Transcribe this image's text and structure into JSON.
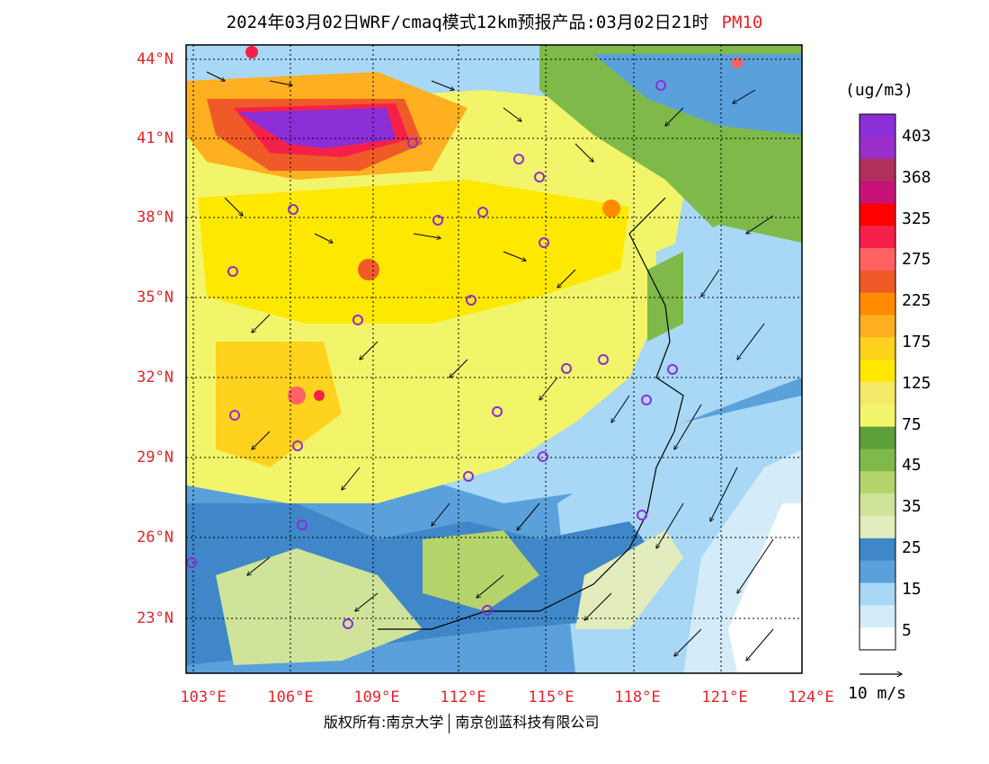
{
  "title": {
    "main": "2024年03月02日WRF/cmaq模式12km预报产品:03月02日21时",
    "species": "PM10"
  },
  "map": {
    "lat_labels": [
      "44°N",
      "41°N",
      "38°N",
      "35°N",
      "32°N",
      "29°N",
      "26°N",
      "23°N"
    ],
    "lon_labels": [
      "103°E",
      "106°E",
      "109°E",
      "112°E",
      "115°E",
      "118°E",
      "121°E",
      "124°E"
    ]
  },
  "colorbar": {
    "unit": "(ug/m3)",
    "labels": [
      "403",
      "368",
      "325",
      "275",
      "225",
      "175",
      "125",
      "75",
      "45",
      "35",
      "25",
      "15",
      "5"
    ],
    "colors": [
      "#8b2fd6",
      "#9b2fc9",
      "#b0305c",
      "#c8127a",
      "#ff0000",
      "#f5204a",
      "#ff6262",
      "#f05a28",
      "#ff8c00",
      "#ffb020",
      "#ffd21e",
      "#ffe800",
      "#f5e96a",
      "#f2f56a",
      "#5fa03a",
      "#7fb94a",
      "#b5d36b",
      "#cfe39a",
      "#e3ecbd",
      "#3f87c8",
      "#5aa1dc",
      "#a8d8f5",
      "#d4ecfa",
      "#ffffff"
    ]
  },
  "wind": {
    "label": "10 m/s"
  },
  "footer": {
    "left": "版权所有:南京大学",
    "right": "南京创蓝科技有限公司"
  }
}
